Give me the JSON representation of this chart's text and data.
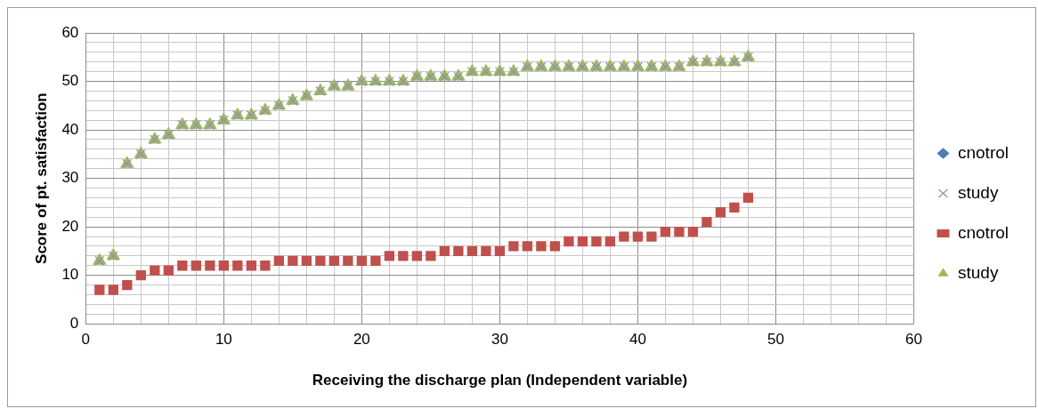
{
  "chart_data": {
    "type": "scatter",
    "xlabel": "Receiving the discharge plan (Independent variable)",
    "ylabel": "Score of pt. satisfaction",
    "x": [
      1,
      2,
      3,
      4,
      5,
      6,
      7,
      8,
      9,
      10,
      11,
      12,
      13,
      14,
      15,
      16,
      17,
      18,
      19,
      20,
      21,
      22,
      23,
      24,
      25,
      26,
      27,
      28,
      29,
      30,
      31,
      32,
      33,
      34,
      35,
      36,
      37,
      38,
      39,
      40,
      41,
      42,
      43,
      44,
      45,
      46,
      47,
      48
    ],
    "series": [
      {
        "name": "cnotrol",
        "color": "#4a7ebb",
        "marker": "diamond",
        "values": [
          null,
          null,
          null,
          null,
          null,
          null,
          null,
          null,
          null,
          null,
          null,
          null,
          null,
          null,
          null,
          null,
          null,
          null,
          null,
          null,
          null,
          null,
          null,
          null,
          null,
          null,
          null,
          null,
          null,
          null,
          null,
          null,
          null,
          null,
          null,
          null,
          null,
          null,
          null,
          null,
          null,
          null,
          null,
          null,
          null,
          null,
          null,
          null
        ]
      },
      {
        "name": "study",
        "color": "#9b87c4",
        "marker": "cross",
        "values": [
          13,
          14,
          33,
          35,
          38,
          39,
          41,
          41,
          41,
          42,
          43,
          43,
          44,
          45,
          46,
          47,
          48,
          49,
          49,
          50,
          50,
          50,
          50,
          51,
          51,
          51,
          51,
          52,
          52,
          52,
          52,
          53,
          53,
          53,
          53,
          53,
          53,
          53,
          53,
          53,
          53,
          53,
          53,
          54,
          54,
          54,
          54,
          55
        ]
      },
      {
        "name": "cnotrol",
        "color": "#c0504d",
        "marker": "square",
        "values": [
          7,
          7,
          8,
          10,
          11,
          11,
          12,
          12,
          12,
          12,
          12,
          12,
          12,
          13,
          13,
          13,
          13,
          13,
          13,
          13,
          13,
          14,
          14,
          14,
          14,
          15,
          15,
          15,
          15,
          15,
          16,
          16,
          16,
          16,
          17,
          17,
          17,
          17,
          18,
          18,
          18,
          19,
          19,
          19,
          21,
          23,
          24,
          26
        ]
      },
      {
        "name": "study",
        "color": "#9bbb59",
        "marker": "triangle",
        "values": [
          13,
          14,
          33,
          35,
          38,
          39,
          41,
          41,
          41,
          42,
          43,
          43,
          44,
          45,
          46,
          47,
          48,
          49,
          49,
          50,
          50,
          50,
          50,
          51,
          51,
          51,
          51,
          52,
          52,
          52,
          52,
          53,
          53,
          53,
          53,
          53,
          53,
          53,
          53,
          53,
          53,
          53,
          53,
          54,
          54,
          54,
          54,
          55
        ]
      }
    ],
    "xlim": [
      0,
      60
    ],
    "xticks": [
      0,
      {
        "value": 2,
        "label": null
      },
      {
        "value": 4,
        "label": null
      },
      {
        "value": 6,
        "label": null
      },
      {
        "value": 8,
        "label": null
      },
      10,
      {
        "value": 12,
        "label": null
      },
      {
        "value": 14,
        "label": null
      },
      {
        "value": 16,
        "label": null
      },
      {
        "value": 18,
        "label": null
      },
      20,
      {
        "value": 22,
        "label": null
      },
      {
        "value": 24,
        "label": null
      },
      {
        "value": 26,
        "label": null
      },
      {
        "value": 28,
        "label": null
      },
      30,
      {
        "value": 32,
        "label": null
      },
      {
        "value": 34,
        "label": null
      },
      {
        "value": 36,
        "label": null
      },
      {
        "value": 38,
        "label": null
      },
      40,
      {
        "value": 42,
        "label": null
      },
      {
        "value": 44,
        "label": null
      },
      {
        "value": 46,
        "label": null
      },
      {
        "value": 48,
        "label": null
      },
      50,
      {
        "value": 52,
        "label": null
      },
      {
        "value": 54,
        "label": null
      },
      {
        "value": 56,
        "label": null
      },
      {
        "value": 58,
        "label": null
      },
      60
    ],
    "ylim": [
      0,
      60
    ],
    "yticks": [
      0,
      {
        "value": 2,
        "label": null
      },
      {
        "value": 4,
        "label": null
      },
      {
        "value": 6,
        "label": null
      },
      {
        "value": 8,
        "label": null
      },
      10,
      {
        "value": 12,
        "label": null
      },
      {
        "value": 14,
        "label": null
      },
      {
        "value": 16,
        "label": null
      },
      {
        "value": 18,
        "label": null
      },
      20,
      {
        "value": 22,
        "label": null
      },
      {
        "value": 24,
        "label": null
      },
      {
        "value": 26,
        "label": null
      },
      {
        "value": 28,
        "label": null
      },
      30,
      {
        "value": 32,
        "label": null
      },
      {
        "value": 34,
        "label": null
      },
      {
        "value": 36,
        "label": null
      },
      {
        "value": 38,
        "label": null
      },
      40,
      {
        "value": 42,
        "label": null
      },
      {
        "value": 44,
        "label": null
      },
      {
        "value": 46,
        "label": null
      },
      {
        "value": 48,
        "label": null
      },
      50,
      {
        "value": 52,
        "label": null
      },
      {
        "value": 54,
        "label": null
      },
      {
        "value": 56,
        "label": null
      },
      {
        "value": 58,
        "label": null
      },
      60
    ],
    "grid": true,
    "legend": "right"
  }
}
